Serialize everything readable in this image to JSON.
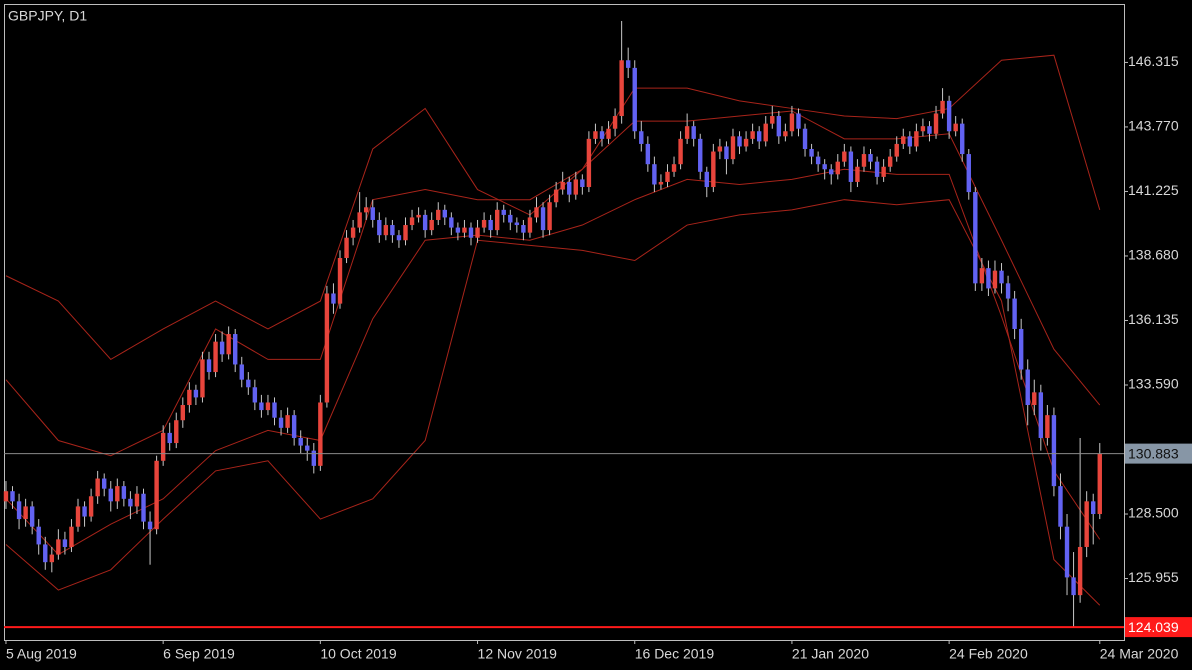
{
  "chart_data": {
    "type": "candlestick",
    "title": "GBPJPY, D1",
    "up_color": "#e8453c",
    "down_color": "#6262f2",
    "wick_color": "#c8c8c8",
    "ylim": [
      123.53,
      148.62
    ],
    "yticks": [
      146.315,
      {
        "value": 143.77,
        "label": "143.770"
      },
      141.225,
      {
        "value": 138.68,
        "label": "138.680"
      },
      136.135,
      {
        "value": 133.59,
        "label": "133.590"
      },
      {
        "value": 128.5,
        "label": "128.500"
      },
      125.955
    ],
    "xlim": [
      -0.3,
      170.7
    ],
    "xticks": [
      {
        "value": 0,
        "label": "5 Aug 2019"
      },
      {
        "value": 24,
        "label": "6 Sep 2019"
      },
      {
        "value": 48,
        "label": "10 Oct 2019"
      },
      {
        "value": 72,
        "label": "12 Nov 2019"
      },
      {
        "value": 96,
        "label": "16 Dec 2019"
      },
      {
        "value": 120,
        "label": "21 Jan 2020"
      },
      {
        "value": 144,
        "label": "24 Feb 2020"
      },
      {
        "value": 167,
        "label": "24 Mar 2020"
      }
    ],
    "price_line": {
      "value": 130.883,
      "color": "#8a8a8a",
      "label_bg": "#8796a6"
    },
    "low_line": {
      "value": 124.039,
      "color": "#ff1a1a",
      "label_bg": "#ff1a1a"
    },
    "ohlc": [
      [
        129.0,
        129.8,
        128.7,
        129.4
      ],
      [
        129.4,
        129.6,
        128.7,
        129.0
      ],
      [
        129.0,
        129.3,
        127.9,
        128.3
      ],
      [
        128.3,
        129.1,
        128.0,
        128.8
      ],
      [
        128.8,
        129.0,
        127.7,
        128.0
      ],
      [
        128.0,
        128.3,
        126.9,
        127.3
      ],
      [
        127.3,
        127.6,
        126.3,
        126.6
      ],
      [
        126.6,
        127.2,
        126.2,
        126.9
      ],
      [
        126.9,
        127.9,
        126.7,
        127.5
      ],
      [
        127.5,
        127.8,
        126.9,
        127.2
      ],
      [
        127.2,
        128.3,
        127.0,
        128.0
      ],
      [
        128.0,
        129.1,
        127.8,
        128.8
      ],
      [
        128.8,
        129.0,
        128.0,
        128.4
      ],
      [
        128.4,
        129.5,
        128.2,
        129.2
      ],
      [
        129.2,
        130.2,
        128.9,
        129.9
      ],
      [
        129.9,
        130.1,
        129.2,
        129.5
      ],
      [
        129.5,
        129.8,
        128.6,
        129.0
      ],
      [
        129.0,
        129.9,
        128.7,
        129.6
      ],
      [
        129.6,
        129.8,
        128.8,
        129.1
      ],
      [
        129.1,
        129.4,
        128.3,
        128.8
      ],
      [
        128.8,
        129.6,
        128.5,
        129.3
      ],
      [
        129.3,
        129.5,
        127.9,
        128.2
      ],
      [
        128.2,
        128.6,
        126.5,
        127.9
      ],
      [
        127.9,
        130.8,
        127.7,
        130.6
      ],
      [
        130.6,
        132.0,
        130.4,
        131.7
      ],
      [
        131.7,
        132.1,
        131.0,
        131.3
      ],
      [
        131.3,
        132.5,
        131.1,
        132.2
      ],
      [
        132.2,
        133.1,
        131.9,
        132.8
      ],
      [
        132.8,
        133.7,
        132.5,
        133.4
      ],
      [
        133.4,
        133.6,
        132.8,
        133.1
      ],
      [
        133.1,
        134.9,
        132.9,
        134.6
      ],
      [
        134.6,
        134.9,
        133.8,
        134.1
      ],
      [
        134.1,
        135.6,
        133.9,
        135.3
      ],
      [
        135.3,
        135.7,
        134.5,
        134.8
      ],
      [
        134.8,
        135.9,
        134.6,
        135.6
      ],
      [
        135.6,
        135.8,
        134.1,
        134.4
      ],
      [
        134.4,
        134.7,
        133.5,
        133.8
      ],
      [
        133.8,
        134.1,
        133.2,
        133.5
      ],
      [
        133.5,
        133.8,
        132.6,
        132.9
      ],
      [
        132.9,
        133.2,
        132.3,
        132.6
      ],
      [
        132.6,
        133.2,
        132.4,
        132.9
      ],
      [
        132.9,
        133.1,
        132.0,
        132.3
      ],
      [
        132.3,
        132.6,
        131.6,
        131.9
      ],
      [
        131.9,
        132.7,
        131.7,
        132.4
      ],
      [
        132.4,
        132.6,
        131.2,
        131.5
      ],
      [
        131.5,
        131.8,
        130.9,
        131.2
      ],
      [
        131.2,
        131.5,
        130.6,
        131.0
      ],
      [
        131.0,
        131.3,
        130.1,
        130.4
      ],
      [
        130.4,
        133.2,
        130.2,
        132.9
      ],
      [
        132.9,
        137.5,
        132.7,
        137.2
      ],
      [
        137.2,
        137.6,
        136.4,
        136.8
      ],
      [
        136.8,
        138.9,
        136.6,
        138.6
      ],
      [
        138.6,
        139.7,
        138.4,
        139.4
      ],
      [
        139.4,
        140.1,
        139.1,
        139.8
      ],
      [
        139.8,
        141.2,
        139.6,
        140.4
      ],
      [
        140.4,
        141.0,
        140.1,
        140.6
      ],
      [
        140.6,
        140.9,
        139.8,
        140.1
      ],
      [
        140.1,
        140.4,
        139.2,
        139.5
      ],
      [
        139.5,
        140.2,
        139.3,
        139.9
      ],
      [
        139.9,
        140.1,
        139.2,
        139.5
      ],
      [
        139.5,
        139.7,
        139.0,
        139.3
      ],
      [
        139.3,
        140.2,
        139.1,
        139.9
      ],
      [
        139.9,
        140.5,
        139.7,
        140.2
      ],
      [
        140.2,
        140.6,
        140.0,
        140.3
      ],
      [
        140.3,
        140.5,
        139.4,
        139.7
      ],
      [
        139.7,
        140.4,
        139.5,
        140.1
      ],
      [
        140.1,
        140.8,
        139.9,
        140.5
      ],
      [
        140.5,
        140.7,
        139.9,
        140.2
      ],
      [
        140.2,
        140.4,
        139.5,
        139.8
      ],
      [
        139.8,
        140.0,
        139.3,
        139.6
      ],
      [
        139.6,
        140.1,
        139.4,
        139.8
      ],
      [
        139.8,
        140.0,
        139.1,
        139.4
      ],
      [
        139.4,
        140.1,
        139.2,
        139.8
      ],
      [
        139.8,
        140.4,
        139.6,
        140.1
      ],
      [
        140.1,
        140.3,
        139.4,
        139.7
      ],
      [
        139.7,
        140.8,
        139.5,
        140.5
      ],
      [
        140.5,
        140.7,
        140.0,
        140.3
      ],
      [
        140.3,
        140.5,
        139.7,
        140.0
      ],
      [
        140.0,
        140.2,
        139.6,
        139.9
      ],
      [
        139.9,
        140.1,
        139.3,
        139.6
      ],
      [
        139.6,
        140.5,
        139.4,
        140.2
      ],
      [
        140.2,
        141.0,
        140.0,
        140.6
      ],
      [
        140.6,
        140.8,
        139.4,
        139.7
      ],
      [
        139.7,
        141.1,
        139.5,
        140.8
      ],
      [
        140.8,
        141.6,
        140.6,
        141.3
      ],
      [
        141.3,
        142.0,
        141.1,
        141.6
      ],
      [
        141.6,
        141.8,
        140.8,
        141.1
      ],
      [
        141.1,
        142.0,
        140.9,
        141.7
      ],
      [
        141.7,
        141.9,
        141.1,
        141.4
      ],
      [
        141.4,
        143.6,
        141.2,
        143.3
      ],
      [
        143.3,
        143.9,
        143.1,
        143.6
      ],
      [
        143.6,
        143.8,
        143.0,
        143.3
      ],
      [
        143.3,
        144.0,
        143.1,
        143.7
      ],
      [
        143.7,
        144.5,
        143.4,
        144.2
      ],
      [
        144.2,
        147.95,
        143.9,
        146.4
      ],
      [
        146.4,
        146.9,
        145.7,
        146.1
      ],
      [
        146.1,
        146.4,
        143.3,
        143.6
      ],
      [
        143.6,
        144.0,
        142.8,
        143.1
      ],
      [
        143.1,
        143.4,
        142.0,
        142.3
      ],
      [
        142.3,
        142.6,
        141.2,
        141.5
      ],
      [
        141.5,
        141.9,
        141.3,
        141.6
      ],
      [
        141.6,
        142.3,
        141.4,
        142.0
      ],
      [
        142.0,
        142.6,
        141.8,
        142.3
      ],
      [
        142.3,
        143.6,
        142.1,
        143.3
      ],
      [
        143.3,
        144.3,
        143.1,
        143.8
      ],
      [
        143.8,
        144.0,
        143.0,
        143.3
      ],
      [
        143.3,
        143.5,
        141.7,
        142.0
      ],
      [
        142.0,
        142.2,
        141.0,
        141.4
      ],
      [
        141.4,
        143.1,
        141.2,
        142.8
      ],
      [
        142.8,
        143.3,
        142.5,
        143.0
      ],
      [
        143.0,
        143.2,
        141.9,
        142.5
      ],
      [
        142.5,
        143.7,
        142.3,
        143.4
      ],
      [
        143.4,
        143.6,
        142.7,
        143.0
      ],
      [
        143.0,
        143.6,
        142.8,
        143.3
      ],
      [
        143.3,
        143.9,
        143.1,
        143.6
      ],
      [
        143.6,
        143.8,
        142.9,
        143.2
      ],
      [
        143.2,
        144.2,
        143.0,
        143.9
      ],
      [
        143.9,
        144.6,
        143.7,
        144.2
      ],
      [
        144.2,
        144.4,
        143.1,
        143.4
      ],
      [
        143.4,
        143.9,
        143.2,
        143.6
      ],
      [
        143.6,
        144.6,
        143.4,
        144.3
      ],
      [
        144.3,
        144.5,
        143.4,
        143.7
      ],
      [
        143.7,
        143.9,
        142.6,
        142.9
      ],
      [
        142.9,
        143.1,
        142.3,
        142.6
      ],
      [
        142.6,
        142.8,
        142.0,
        142.3
      ],
      [
        142.3,
        142.5,
        141.7,
        142.1
      ],
      [
        142.1,
        142.3,
        141.5,
        141.9
      ],
      [
        141.9,
        142.7,
        141.7,
        142.4
      ],
      [
        142.4,
        143.1,
        142.2,
        142.8
      ],
      [
        142.8,
        143.0,
        141.2,
        141.6
      ],
      [
        141.6,
        142.5,
        141.4,
        142.2
      ],
      [
        142.2,
        143.0,
        142.0,
        142.7
      ],
      [
        142.7,
        142.9,
        142.1,
        142.4
      ],
      [
        142.4,
        142.6,
        141.5,
        141.8
      ],
      [
        141.8,
        142.5,
        141.6,
        142.2
      ],
      [
        142.2,
        142.9,
        142.0,
        142.6
      ],
      [
        142.6,
        143.4,
        142.4,
        143.1
      ],
      [
        143.1,
        143.7,
        142.9,
        143.4
      ],
      [
        143.4,
        143.6,
        142.7,
        143.0
      ],
      [
        143.0,
        143.9,
        142.8,
        143.6
      ],
      [
        143.6,
        144.1,
        143.4,
        143.8
      ],
      [
        143.8,
        144.0,
        143.2,
        143.5
      ],
      [
        143.5,
        144.6,
        143.3,
        144.3
      ],
      [
        144.3,
        145.3,
        144.1,
        144.8
      ],
      [
        144.8,
        145.0,
        143.3,
        143.6
      ],
      [
        143.6,
        144.2,
        143.4,
        143.9
      ],
      [
        143.9,
        144.1,
        142.4,
        142.7
      ],
      [
        142.7,
        142.9,
        140.9,
        141.2
      ],
      [
        141.2,
        141.4,
        137.3,
        137.6
      ],
      [
        137.6,
        138.6,
        137.3,
        138.2
      ],
      [
        138.2,
        138.5,
        137.1,
        137.4
      ],
      [
        137.4,
        138.5,
        137.2,
        138.1
      ],
      [
        138.1,
        138.4,
        137.2,
        137.6
      ],
      [
        137.6,
        137.9,
        136.5,
        137.0
      ],
      [
        137.0,
        137.3,
        135.4,
        135.8
      ],
      [
        135.8,
        136.2,
        133.8,
        134.2
      ],
      [
        134.2,
        134.6,
        132.0,
        132.8
      ],
      [
        132.8,
        133.8,
        132.4,
        133.3
      ],
      [
        133.3,
        133.6,
        131.0,
        131.5
      ],
      [
        131.5,
        132.8,
        131.2,
        132.4
      ],
      [
        132.4,
        132.7,
        129.2,
        129.6
      ],
      [
        129.6,
        130.1,
        127.5,
        128.0
      ],
      [
        128.0,
        128.5,
        125.3,
        126.0
      ],
      [
        126.0,
        127.0,
        124.039,
        125.3
      ],
      [
        125.3,
        131.5,
        125.0,
        127.2
      ],
      [
        127.2,
        129.4,
        126.8,
        129.0
      ],
      [
        129.0,
        129.3,
        127.3,
        128.5
      ],
      [
        128.5,
        131.3,
        128.3,
        130.883
      ]
    ],
    "bands": [
      {
        "color": "#a8241a",
        "x": [
          0,
          8,
          16,
          24,
          32,
          40,
          48,
          56,
          64,
          72,
          80,
          88,
          96,
          104,
          112,
          120,
          128,
          136,
          144,
          152,
          160,
          167
        ],
        "values": [
          137.9,
          136.9,
          134.6,
          135.8,
          136.9,
          135.8,
          136.9,
          142.9,
          144.5,
          141.3,
          140.3,
          142.1,
          145.3,
          145.3,
          144.8,
          144.5,
          144.2,
          144.1,
          144.5,
          146.4,
          146.6,
          140.5
        ]
      },
      {
        "color": "#a8241a",
        "x": [
          0,
          8,
          16,
          24,
          32,
          40,
          48,
          56,
          64,
          72,
          80,
          88,
          96,
          104,
          112,
          120,
          128,
          136,
          144,
          152,
          160,
          167
        ],
        "values": [
          133.8,
          131.4,
          130.8,
          131.8,
          135.8,
          134.6,
          134.6,
          140.9,
          141.3,
          140.9,
          140.9,
          142.1,
          144.0,
          144.0,
          144.2,
          144.4,
          143.3,
          143.3,
          143.5,
          139.3,
          135.0,
          132.8
        ]
      },
      {
        "color": "#a8241a",
        "x": [
          0,
          8,
          16,
          24,
          32,
          40,
          48,
          56,
          64,
          72,
          80,
          88,
          96,
          104,
          112,
          120,
          128,
          136,
          144,
          152,
          160,
          167
        ],
        "values": [
          129.1,
          126.9,
          128.1,
          129.1,
          131.0,
          131.8,
          131.4,
          136.2,
          139.3,
          139.5,
          139.3,
          139.9,
          140.9,
          141.7,
          141.5,
          141.7,
          142.1,
          141.9,
          141.9,
          136.3,
          130.2,
          127.5
        ]
      },
      {
        "color": "#a8241a",
        "x": [
          0,
          8,
          16,
          24,
          32,
          40,
          48,
          56,
          64,
          72,
          80,
          88,
          96,
          104,
          112,
          120,
          128,
          136,
          144,
          152,
          160,
          167
        ],
        "values": [
          127.3,
          125.5,
          126.3,
          128.3,
          130.2,
          130.6,
          128.3,
          129.1,
          131.4,
          139.3,
          139.1,
          138.9,
          138.5,
          139.9,
          140.3,
          140.5,
          140.9,
          140.7,
          140.9,
          136.9,
          126.7,
          124.9
        ]
      }
    ]
  }
}
